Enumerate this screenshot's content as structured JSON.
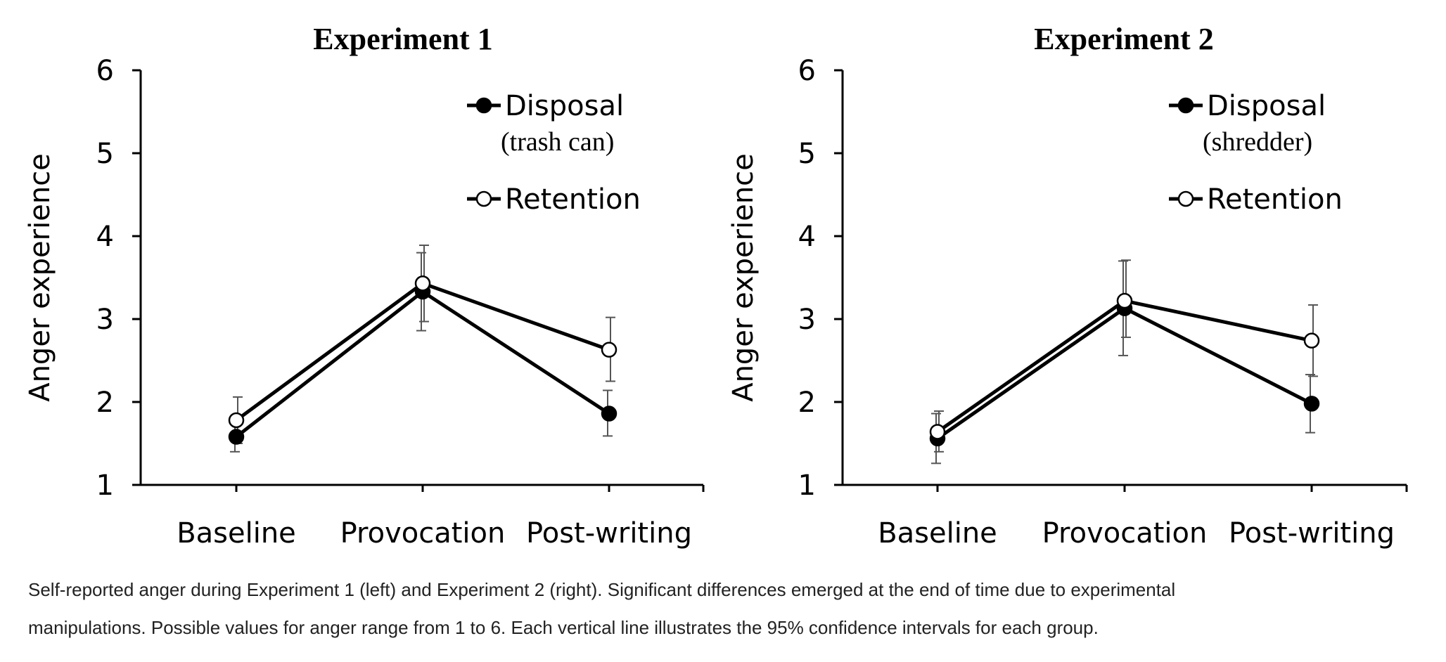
{
  "caption": {
    "line1": "Self-reported anger during Experiment 1 (left) and Experiment 2 (right). Significant differences emerged at the end of time due to experimental",
    "line2": "manipulations. Possible values for anger range from 1 to 6. Each vertical line illustrates the 95% confidence intervals for each group."
  },
  "chart_data": [
    {
      "type": "line",
      "title": "Experiment 1",
      "ylabel": "Anger experience",
      "xlabel": "",
      "ylim": [
        1,
        6
      ],
      "yticks": [
        "1",
        "2",
        "3",
        "4",
        "5",
        "6"
      ],
      "categories": [
        "Baseline",
        "Provocation",
        "Post-writing"
      ],
      "legend_position": "top-right",
      "grid": false,
      "series": [
        {
          "name": "Disposal",
          "subname": "(trash can)",
          "marker": "filled-circle",
          "color": "#000000",
          "values": [
            1.58,
            3.33,
            1.86
          ],
          "ci_low": [
            1.4,
            2.86,
            1.59
          ],
          "ci_high": [
            1.76,
            3.8,
            2.14
          ]
        },
        {
          "name": "Retention",
          "subname": "",
          "marker": "open-circle",
          "color": "#000000",
          "values": [
            1.78,
            3.43,
            2.63
          ],
          "ci_low": [
            1.5,
            2.97,
            2.25
          ],
          "ci_high": [
            2.06,
            3.89,
            3.02
          ]
        }
      ]
    },
    {
      "type": "line",
      "title": "Experiment 2",
      "ylabel": "Anger experience",
      "xlabel": "",
      "ylim": [
        1,
        6
      ],
      "yticks": [
        "1",
        "2",
        "3",
        "4",
        "5",
        "6"
      ],
      "categories": [
        "Baseline",
        "Provocation",
        "Post-writing"
      ],
      "legend_position": "top-right",
      "grid": false,
      "series": [
        {
          "name": "Disposal",
          "subname": "(shredder)",
          "marker": "filled-circle",
          "color": "#000000",
          "values": [
            1.56,
            3.13,
            1.98
          ],
          "ci_low": [
            1.26,
            2.56,
            1.63
          ],
          "ci_high": [
            1.86,
            3.7,
            2.33
          ]
        },
        {
          "name": "Retention",
          "subname": "",
          "marker": "open-circle",
          "color": "#000000",
          "values": [
            1.64,
            3.22,
            2.74
          ],
          "ci_low": [
            1.4,
            2.78,
            2.31
          ],
          "ci_high": [
            1.89,
            3.71,
            3.17
          ]
        }
      ]
    }
  ]
}
